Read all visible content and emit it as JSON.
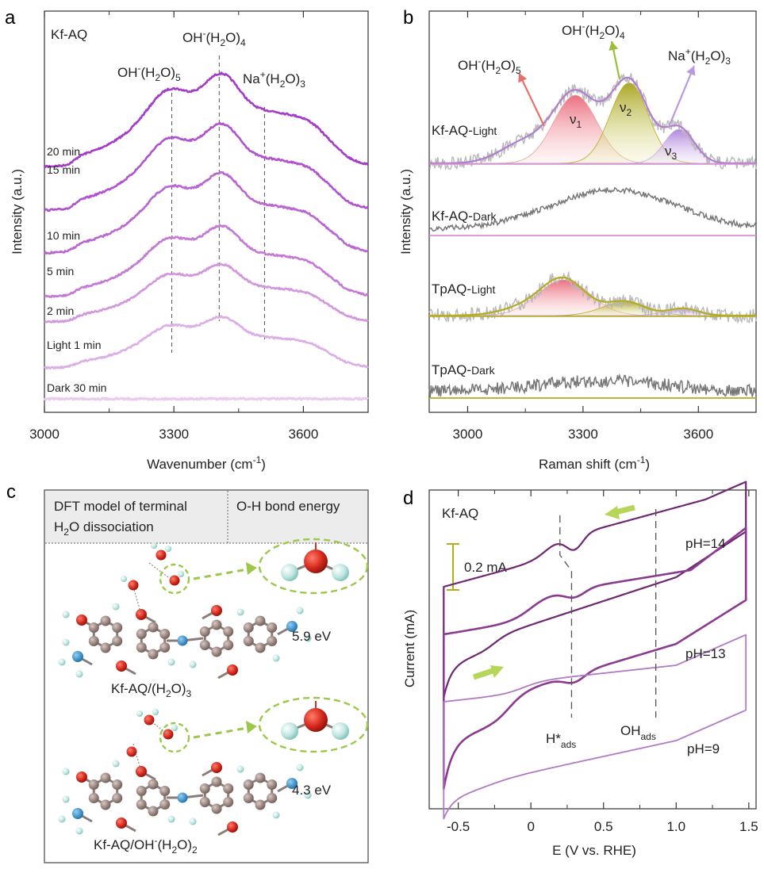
{
  "panels": {
    "a": {
      "label": "a",
      "sample": "Kf-AQ"
    },
    "b": {
      "label": "b"
    },
    "c": {
      "label": "c",
      "col1_line1": "DFT model of terminal",
      "col1_line2": "H",
      "col1_sub": "2",
      "col1_line2b": "O dissociation",
      "col2": "O-H bond energy",
      "model1": {
        "name": "Kf-AQ/(H",
        "sub": "2",
        "tail": "O)",
        "sub2": "3",
        "energy": "5.9 eV"
      },
      "model2": {
        "name": "Kf-AQ/OH",
        "sup": "-",
        "mid": "(H",
        "sub": "2",
        "tail": "O)",
        "sub2": "2",
        "energy": "4.3 eV"
      }
    },
    "d": {
      "label": "d"
    }
  },
  "colors": {
    "deep": "#a43cc8",
    "mid": "#c06ad0",
    "light": "#dcaee6",
    "olive": "#b5ac1f",
    "red": "#e8706b",
    "green": "#9bbf3a",
    "purple": "#b89ae0",
    "gray": "#9a9a9a",
    "dark": "#666666"
  },
  "chart_data": [
    {
      "type": "line",
      "panel": "a",
      "title": "Kf-AQ",
      "xlabel": "Wavenumber (cm-1)",
      "xlabel_parts": {
        "main": "Wavenumber (cm",
        "sup": "-1",
        "end": ")"
      },
      "ylabel": "Intensity (a.u.)",
      "xlim": [
        3000,
        3750
      ],
      "xticks": [
        3000,
        3300,
        3600
      ],
      "series": [
        {
          "name": "20 min",
          "baseline": 7,
          "amp": 1.0
        },
        {
          "name": "15 min",
          "baseline": 6,
          "amp": 0.93
        },
        {
          "name": "10 min",
          "baseline": 5,
          "amp": 0.86
        },
        {
          "name": "5 min",
          "baseline": 4,
          "amp": 0.76
        },
        {
          "name": "2 min",
          "baseline": 3,
          "amp": 0.62
        },
        {
          "name": "Light 1 min",
          "baseline": 2,
          "amp": 0.55
        },
        {
          "name": "Dark 30 min",
          "baseline": 1,
          "amp": 0.0
        }
      ],
      "peaks": [
        {
          "label": "OH-(H2O)5",
          "base": "OH",
          "sup": "-",
          "mid": "(H",
          "sub": "2",
          "end": "O)",
          "sub2": "5",
          "x": 3295
        },
        {
          "label": "OH-(H2O)4",
          "base": "OH",
          "sup": "-",
          "mid": "(H",
          "sub": "2",
          "end": "O)",
          "sub2": "4",
          "x": 3405
        },
        {
          "label": "Na+(H2O)3",
          "base": "Na",
          "sup": "+",
          "mid": "(H",
          "sub": "2",
          "end": "O)",
          "sub2": "3",
          "x": 3510
        }
      ]
    },
    {
      "type": "line",
      "panel": "b",
      "xlabel": "Raman shift (cm-1)",
      "xlabel_parts": {
        "main": "Raman shift (cm",
        "sup": "-1",
        "end": ")"
      },
      "ylabel": "Intensity (a.u.)",
      "xlim": [
        2900,
        3750
      ],
      "xticks": [
        3000,
        3300,
        3600
      ],
      "series": [
        {
          "name": "Kf-AQ-Light",
          "label_main": "Kf-AQ-",
          "label_sub": "Light",
          "fitted": true
        },
        {
          "name": "Kf-AQ-Dark",
          "label_main": "Kf-AQ-",
          "label_sub": "Dark",
          "fitted": false
        },
        {
          "name": "TpAQ-Light",
          "label_main": "TpAQ-",
          "label_sub": "Light",
          "fitted": true
        },
        {
          "name": "TpAQ-Dark",
          "label_main": "TpAQ-",
          "label_sub": "Dark",
          "fitted": false
        }
      ],
      "components": [
        {
          "label": "v1",
          "main": "ν",
          "sub": "1",
          "center": 3280,
          "assign": {
            "base": "OH",
            "sup": "-",
            "mid": "(H",
            "sub": "2",
            "end": "O)",
            "sub2": "5"
          }
        },
        {
          "label": "v2",
          "main": "ν",
          "sub": "2",
          "center": 3420,
          "assign": {
            "base": "OH",
            "sup": "-",
            "mid": "(H",
            "sub": "2",
            "end": "O)",
            "sub2": "4"
          }
        },
        {
          "label": "v3",
          "main": "ν",
          "sub": "3",
          "center": 3550,
          "assign": {
            "base": "Na",
            "sup": "+",
            "mid": "(H",
            "sub": "2",
            "end": "O)",
            "sub2": "3"
          }
        }
      ]
    },
    {
      "type": "line",
      "panel": "d",
      "title": "Kf-AQ",
      "xlabel": "E (V vs. RHE)",
      "ylabel": "Current (mA)",
      "xlim": [
        -0.7,
        1.55
      ],
      "xticks": [
        -0.5,
        0,
        0.5,
        1.0,
        1.5
      ],
      "xtick_labels": [
        "-0.5",
        "0",
        "0.5",
        "1.0",
        "1.5"
      ],
      "scale_bar": "0.2 mA",
      "series": [
        {
          "name": "pH=14"
        },
        {
          "name": "pH=13"
        },
        {
          "name": "pH=9"
        }
      ],
      "markers": [
        {
          "label": "H*ads",
          "main": "H*",
          "sub": "ads",
          "x": 0.28
        },
        {
          "label": "OHads",
          "main": "OH",
          "sub": "ads",
          "x": 0.86
        }
      ]
    }
  ]
}
